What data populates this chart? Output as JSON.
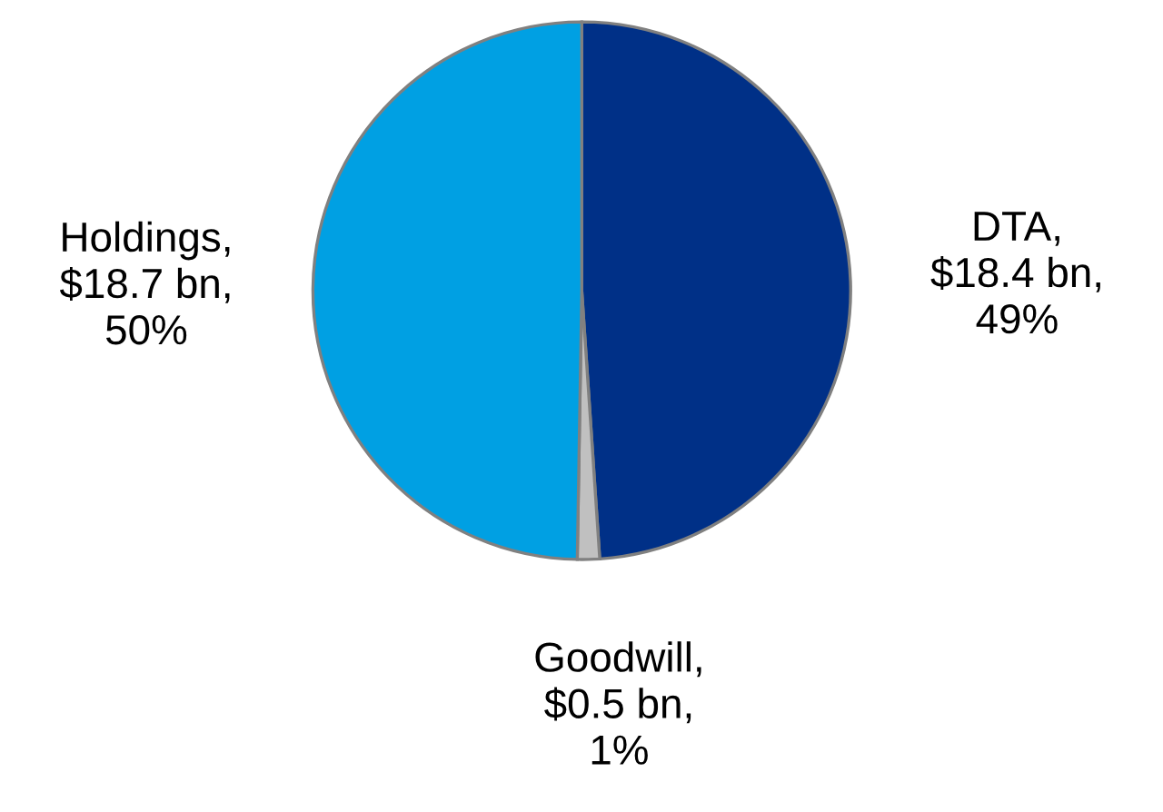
{
  "chart_data": {
    "type": "pie",
    "categories": [
      "DTA,\n$18.4 bn,\n49%",
      "Goodwill,\n$0.5 bn,\n1%",
      "Holdings,\n$18.7 bn,\n50%"
    ],
    "values": [
      18.4,
      0.5,
      18.7
    ],
    "colors": [
      "#003087",
      "#c0c0c0",
      "#00a0e3"
    ]
  }
}
